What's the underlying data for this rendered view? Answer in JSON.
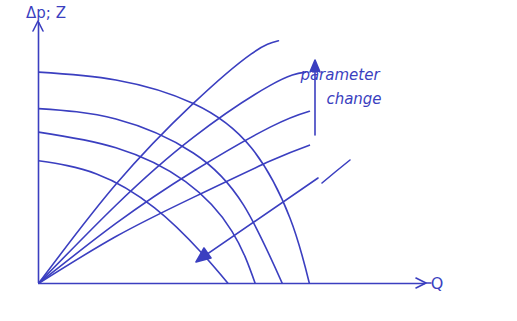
{
  "chart_data": {
    "type": "line",
    "x_label": "Q",
    "y_label": "Δp; Z",
    "annotation": "parameter change",
    "xlim": [
      0,
      10
    ],
    "ylim": [
      0,
      10
    ],
    "tick_labels": false,
    "grid": false,
    "series": [
      {
        "color": "#3b3fc0",
        "x": [
          0,
          2,
          4,
          5.5,
          6.5,
          7.0
        ],
        "values": [
          8.1,
          7.8,
          6.9,
          5.2,
          2.5,
          0
        ]
      },
      {
        "color": "#3b3fc0",
        "x": [
          0,
          2,
          4,
          5.3,
          6.3
        ],
        "values": [
          6.7,
          6.3,
          5.0,
          3.0,
          0
        ]
      },
      {
        "color": "#3b3fc0",
        "x": [
          0,
          2,
          3.8,
          5.0,
          5.6
        ],
        "values": [
          5.8,
          5.2,
          3.9,
          2.0,
          0
        ]
      },
      {
        "color": "#3b3fc0",
        "x": [
          0,
          1.5,
          3,
          4.2,
          4.9
        ],
        "values": [
          4.7,
          4.2,
          2.9,
          1.2,
          0
        ]
      },
      {
        "color": "#3b3fc0",
        "x": [
          0,
          2,
          4,
          5.5,
          6.2
        ],
        "values": [
          0,
          3.8,
          6.9,
          8.8,
          9.3
        ]
      },
      {
        "color": "#3b3fc0",
        "x": [
          0,
          2,
          4,
          6,
          6.9
        ],
        "values": [
          0,
          3.0,
          5.6,
          7.6,
          8.1
        ]
      },
      {
        "color": "#3b3fc0",
        "x": [
          0,
          2,
          4,
          6,
          7.0
        ],
        "values": [
          0,
          2.3,
          4.3,
          6.0,
          6.6
        ]
      },
      {
        "color": "#3b3fc0",
        "x": [
          0,
          2,
          4,
          6,
          7.0
        ],
        "values": [
          0,
          1.8,
          3.3,
          4.7,
          5.3
        ]
      }
    ]
  }
}
